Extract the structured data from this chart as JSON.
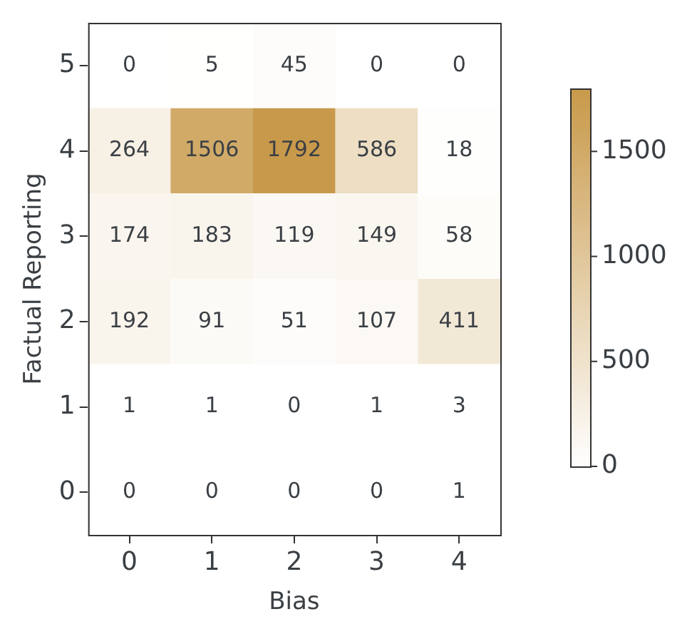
{
  "chart_data": {
    "type": "heatmap",
    "xlabel": "Bias",
    "ylabel": "Factual Reporting",
    "categories": [
      "0",
      "1",
      "2",
      "3",
      "4"
    ],
    "y_categories": [
      "5",
      "4",
      "3",
      "2",
      "1",
      "0"
    ],
    "cells": [
      [
        0,
        5,
        45,
        0,
        0
      ],
      [
        264,
        1506,
        1792,
        586,
        18
      ],
      [
        174,
        183,
        119,
        149,
        58
      ],
      [
        192,
        91,
        51,
        107,
        411
      ],
      [
        1,
        1,
        0,
        1,
        3
      ],
      [
        0,
        0,
        0,
        0,
        1
      ]
    ],
    "data_labels": true,
    "clim": [
      0,
      1800
    ],
    "cticks": [
      0,
      500,
      1000,
      1500
    ],
    "color": "#c8994a",
    "grid": false
  }
}
